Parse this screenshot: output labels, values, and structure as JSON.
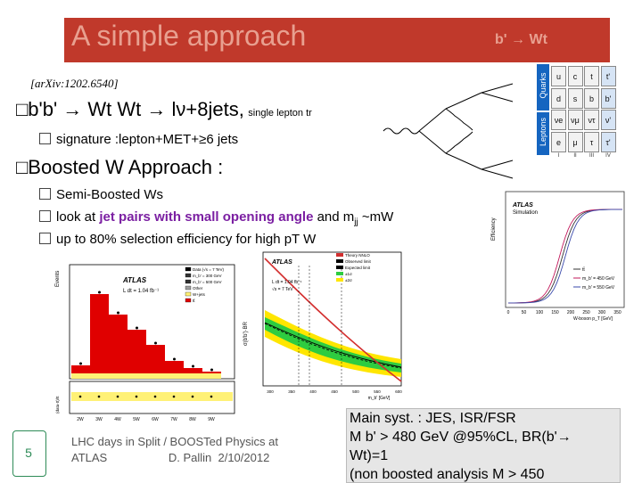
{
  "slide": {
    "title": "A simple approach",
    "process_tag": "b' → Wt",
    "arxiv": "[arXiv:1202.6540]",
    "bullet1": "b'b' → Wt Wt → lν+8jets,",
    "bullet1_small": "single lepton tr",
    "sub1": "signature :lepton+MET+≥6 jets",
    "bullet2": "Boosted W Approach :",
    "sub2": "Semi-Boosted Ws",
    "sub3_a": "look at ",
    "sub3_b": "jet pairs with small opening angle",
    "sub3_c": " and m",
    "sub3_sub": "jj",
    "sub3_d": " ~mW",
    "sub4": "up to 80% selection efficiency for high pT W",
    "page_number": "5",
    "footer_line1": "LHC days in Split / BOOSTed Physics at",
    "footer_line2": "ATLAS                   D. Pallin  2/10/2012",
    "syst_line1": "Main syst. : JES, ISR/FSR",
    "syst_line2": "M b' > 480 GeV  @95%CL, BR(b'→",
    "syst_line3": "Wt)=1",
    "syst_line4": "(non boosted analysis M   > 450"
  },
  "quarks_table": {
    "side_quarks": "Quarks",
    "side_leptons": "Leptons",
    "cells": [
      "u",
      "c",
      "t",
      "t'",
      "d",
      "s",
      "b",
      "b'",
      "νe",
      "νμ",
      "ντ",
      "ν'",
      "e",
      "μ",
      "τ",
      "τ'"
    ],
    "generations": [
      "I",
      "II",
      "III",
      "IV"
    ]
  },
  "plot_left": {
    "atlas": "ATLAS",
    "lumi": "L dt = 1.04 fb⁻¹",
    "legend": [
      "Data (√s = 7 TeV)",
      "m_b' = 300 GeV",
      "m_b' = 500 GeV",
      "Other",
      "W+jets",
      "tt̄"
    ],
    "ylabel": "Events",
    "ratio_label": "(data-tt)/tt",
    "bins": [
      "2W",
      "3W",
      "4W",
      "5W",
      "6W",
      "7W",
      "8W",
      "9W"
    ]
  },
  "plot_mid": {
    "atlas": "ATLAS",
    "lumi": "L dt = 1.04 fb⁻¹",
    "energy": "√s = 7 TeV",
    "ylabel": "σ(b'b')·BR",
    "xlabel": "m_b' [GeV]",
    "legend": [
      "Theory NNLO",
      "Observed limit",
      "Expected limit",
      "±1σ",
      "±2σ"
    ],
    "xticks": [
      "300",
      "350",
      "400",
      "450",
      "500",
      "550",
      "600"
    ]
  },
  "plot_right": {
    "atlas": "ATLAS",
    "sim": "Simulation",
    "ylabel": "Efficiency",
    "xlabel": "W-boson p_T [GeV]",
    "legend": [
      "tt̄",
      "m_b' = 450 GeV",
      "m_b' = 550 GeV"
    ],
    "xticks": [
      "0",
      "50",
      "100",
      "150",
      "200",
      "250",
      "300",
      "350"
    ]
  },
  "colors": {
    "title_bar": "#c0392b",
    "title_text": "#e8a090",
    "highlight": "#7b1fa2",
    "hist_red": "#e00000",
    "band_green": "#2ecc40",
    "band_yellow": "#ffe600"
  }
}
